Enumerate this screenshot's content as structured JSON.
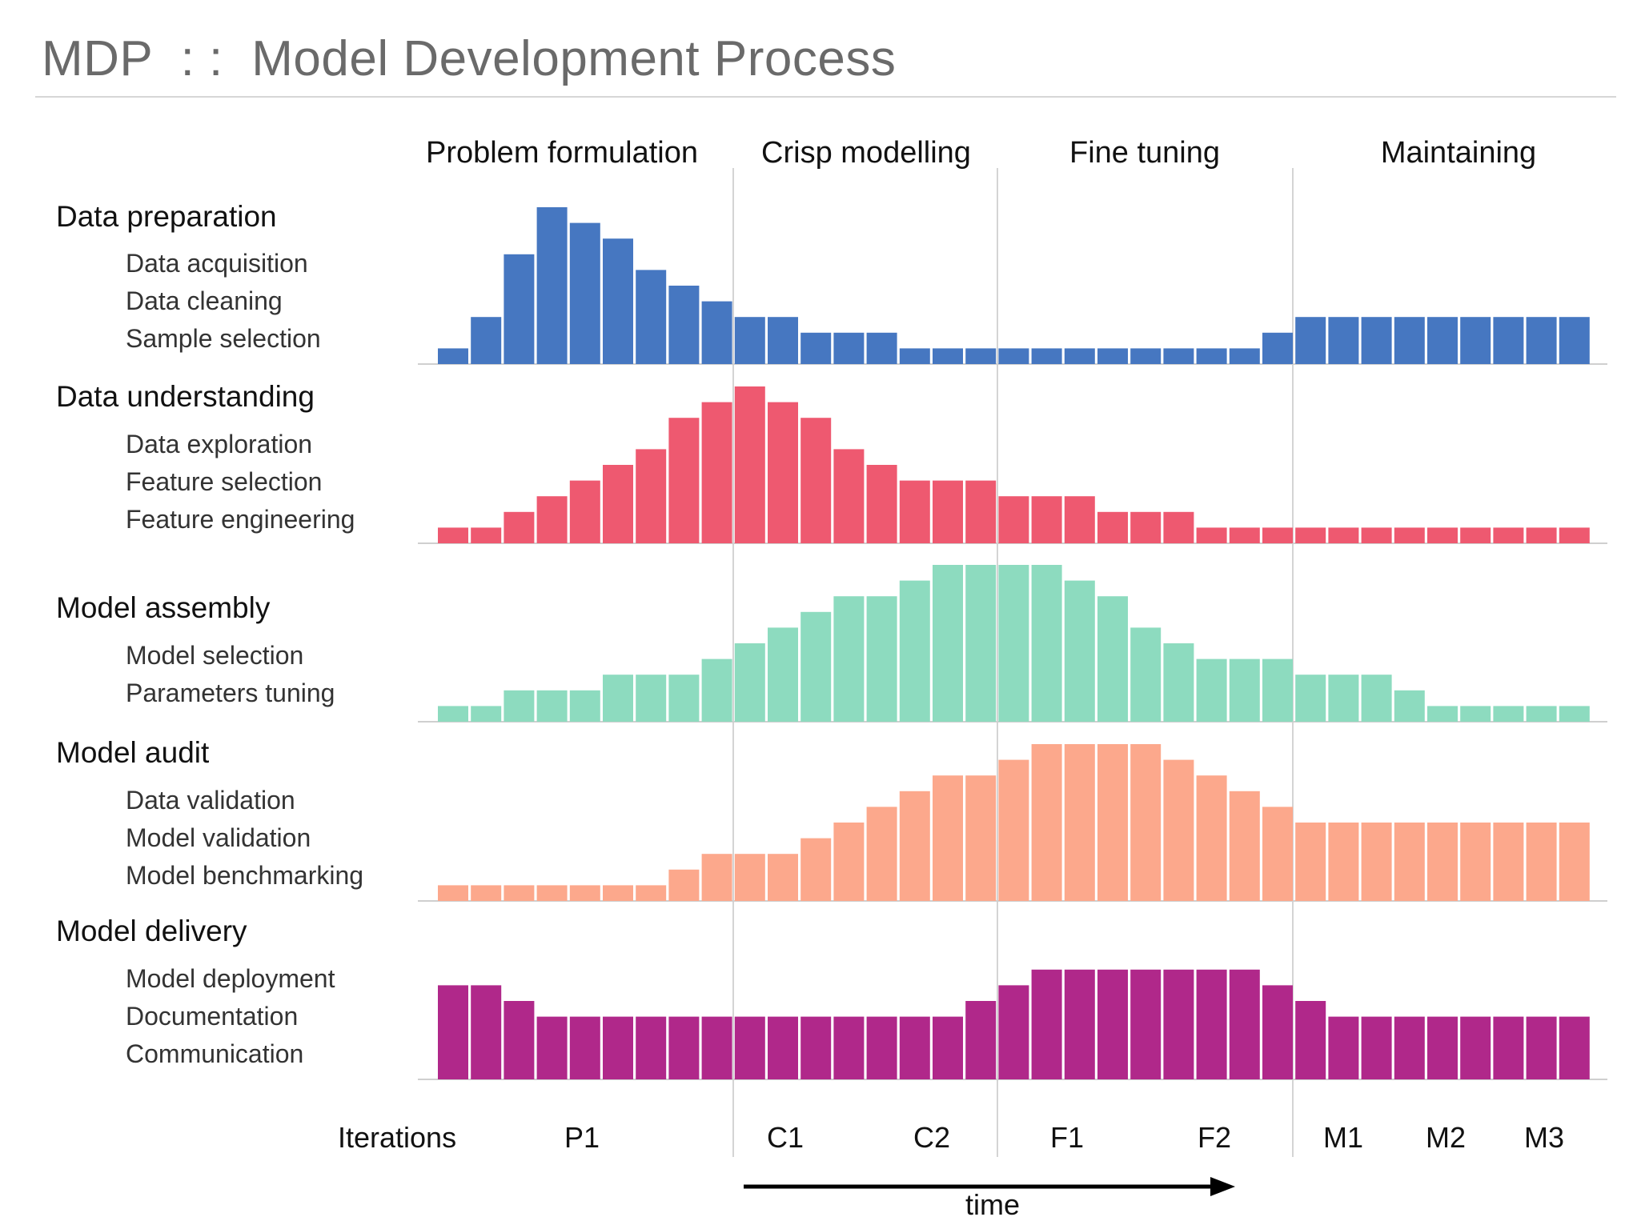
{
  "header": {
    "title": "MDP  : :  Model Development Process"
  },
  "chart_data": {
    "type": "bar",
    "phases": [
      "Problem formulation",
      "Crisp modelling",
      "Fine tuning",
      "Maintaining"
    ],
    "x_axis": {
      "label": "Iterations",
      "ticks": [
        "P1",
        "C1",
        "C2",
        "F1",
        "F2",
        "M1",
        "M2",
        "M3"
      ],
      "direction_label": "time"
    },
    "colors": {
      "Data preparation": "#4677c1",
      "Data understanding": "#ee5970",
      "Model assembly": "#8ddbbf",
      "Model audit": "#fca88c",
      "Model delivery": "#b0288a"
    },
    "series": [
      {
        "name": "Data preparation",
        "items": [
          "Data acquisition",
          "Data cleaning",
          "Sample selection"
        ],
        "values": [
          1,
          3,
          7,
          10,
          9,
          8,
          6,
          5,
          4,
          3,
          3,
          2,
          2,
          2,
          1,
          1,
          1,
          1,
          1,
          1,
          1,
          1,
          1,
          1,
          1,
          2,
          3,
          3,
          3,
          3,
          3,
          3,
          3,
          3,
          3
        ]
      },
      {
        "name": "Data understanding",
        "items": [
          "Data exploration",
          "Feature selection",
          "Feature engineering"
        ],
        "values": [
          1,
          1,
          2,
          3,
          4,
          5,
          6,
          8,
          9,
          10,
          9,
          8,
          6,
          5,
          4,
          4,
          4,
          3,
          3,
          3,
          2,
          2,
          2,
          1,
          1,
          1,
          1,
          1,
          1,
          1,
          1,
          1,
          1,
          1,
          1
        ]
      },
      {
        "name": "Model assembly",
        "items": [
          "Model selection",
          "Parameters tuning"
        ],
        "values": [
          1,
          1,
          2,
          2,
          2,
          3,
          3,
          3,
          4,
          5,
          6,
          7,
          8,
          8,
          9,
          10,
          10,
          10,
          10,
          9,
          8,
          6,
          5,
          4,
          4,
          4,
          3,
          3,
          3,
          2,
          1,
          1,
          1,
          1,
          1
        ]
      },
      {
        "name": "Model audit",
        "items": [
          "Data validation",
          "Model validation",
          "Model benchmarking"
        ],
        "values": [
          1,
          1,
          1,
          1,
          1,
          1,
          1,
          2,
          3,
          3,
          3,
          4,
          5,
          6,
          7,
          8,
          8,
          9,
          10,
          10,
          10,
          10,
          9,
          8,
          7,
          6,
          5,
          5,
          5,
          5,
          5,
          5,
          5,
          5,
          5
        ]
      },
      {
        "name": "Model delivery",
        "items": [
          "Model deployment",
          "Documentation",
          "Communication"
        ],
        "values": [
          6,
          6,
          5,
          4,
          4,
          4,
          4,
          4,
          4,
          4,
          4,
          4,
          4,
          4,
          4,
          4,
          5,
          6,
          7,
          7,
          7,
          7,
          7,
          7,
          7,
          6,
          5,
          4,
          4,
          4,
          4,
          4,
          4,
          4,
          4
        ]
      }
    ]
  }
}
